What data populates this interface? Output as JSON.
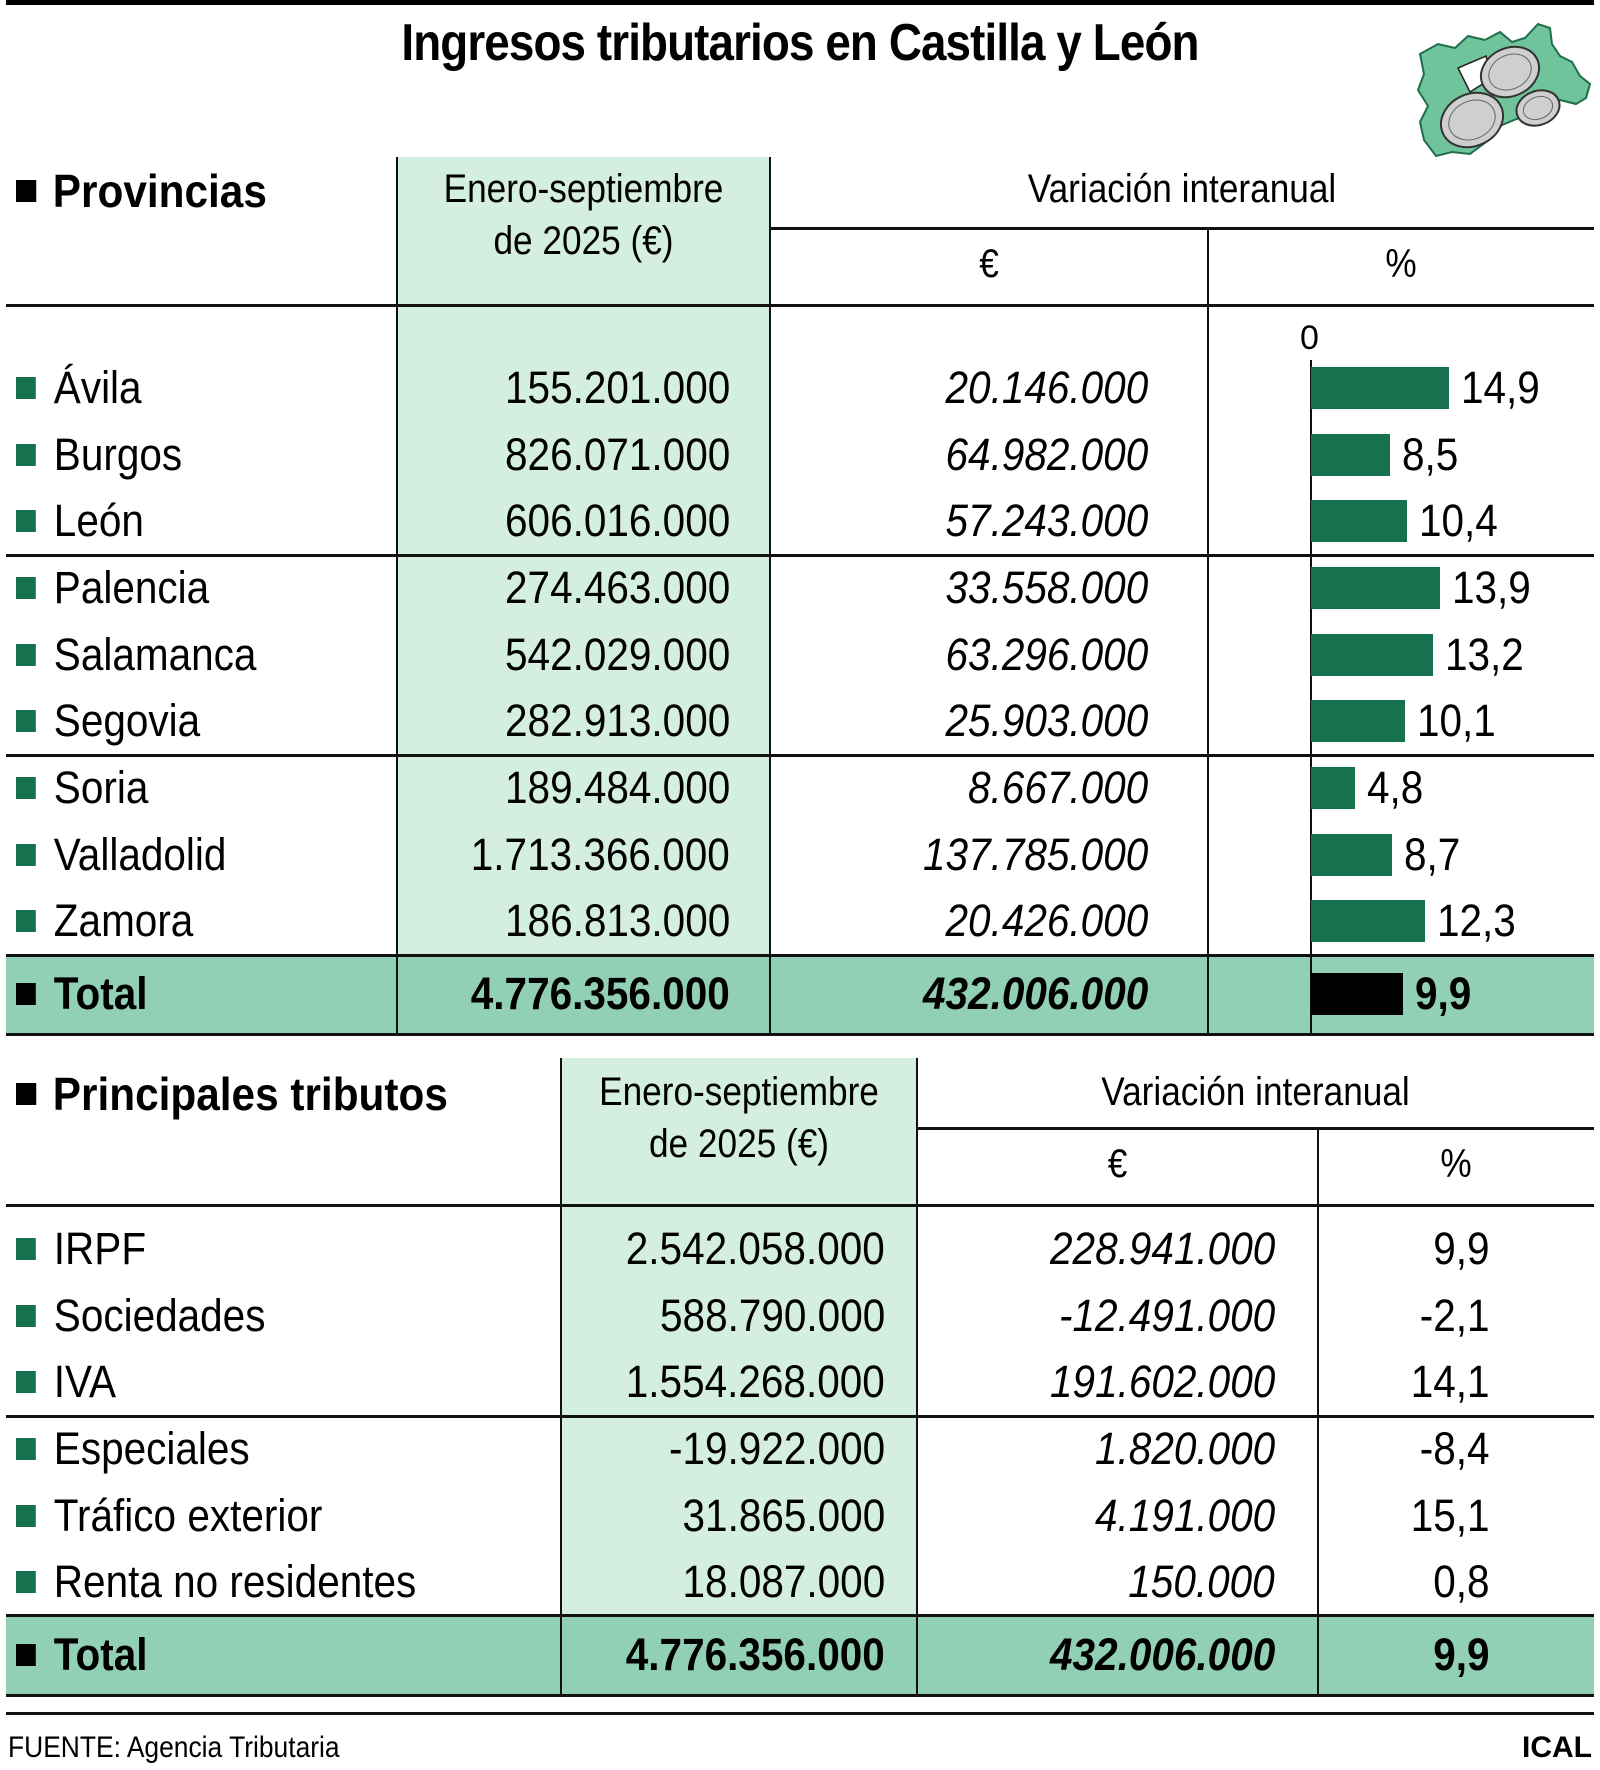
{
  "title": "Ingresos tributarios en Castilla y León",
  "logo": "castilla-leon-map-with-euro-coins",
  "colors": {
    "accent_green": "#17714f",
    "column_highlight": "#d4eee0",
    "total_band": "#92d0b6",
    "total_bar": "#000000"
  },
  "provincias": {
    "section_title": "Provincias",
    "col_period": [
      "Enero-septiembre",
      "de 2025 (€)"
    ],
    "col_variation": "Variación interanual",
    "col_eur": "€",
    "col_pct": "%",
    "axis_zero": "0",
    "rows": [
      {
        "name": "Ávila",
        "value": "155.201.000",
        "var_eur": "20.146.000",
        "var_pct": "14,9",
        "pct": 14.9
      },
      {
        "name": "Burgos",
        "value": "826.071.000",
        "var_eur": "64.982.000",
        "var_pct": "8,5",
        "pct": 8.5
      },
      {
        "name": "León",
        "value": "606.016.000",
        "var_eur": "57.243.000",
        "var_pct": "10,4",
        "pct": 10.4
      },
      {
        "name": "Palencia",
        "value": "274.463.000",
        "var_eur": "33.558.000",
        "var_pct": "13,9",
        "pct": 13.9
      },
      {
        "name": "Salamanca",
        "value": "542.029.000",
        "var_eur": "63.296.000",
        "var_pct": "13,2",
        "pct": 13.2
      },
      {
        "name": "Segovia",
        "value": "282.913.000",
        "var_eur": "25.903.000",
        "var_pct": "10,1",
        "pct": 10.1
      },
      {
        "name": "Soria",
        "value": "189.484.000",
        "var_eur": "8.667.000",
        "var_pct": "4,8",
        "pct": 4.8
      },
      {
        "name": "Valladolid",
        "value": "1.713.366.000",
        "var_eur": "137.785.000",
        "var_pct": "8,7",
        "pct": 8.7
      },
      {
        "name": "Zamora",
        "value": "186.813.000",
        "var_eur": "20.426.000",
        "var_pct": "12,3",
        "pct": 12.3
      }
    ],
    "total": {
      "name": "Total",
      "value": "4.776.356.000",
      "var_eur": "432.006.000",
      "var_pct": "9,9",
      "pct": 9.9
    }
  },
  "tributos": {
    "section_title": "Principales tributos",
    "col_period": [
      "Enero-septiembre",
      "de 2025 (€)"
    ],
    "col_variation": "Variación interanual",
    "col_eur": "€",
    "col_pct": "%",
    "rows": [
      {
        "name": "IRPF",
        "value": "2.542.058.000",
        "var_eur": "228.941.000",
        "var_pct": "9,9"
      },
      {
        "name": "Sociedades",
        "value": "588.790.000",
        "var_eur": "-12.491.000",
        "var_pct": "-2,1"
      },
      {
        "name": "IVA",
        "value": "1.554.268.000",
        "var_eur": "191.602.000",
        "var_pct": "14,1"
      },
      {
        "name": "Especiales",
        "value": "-19.922.000",
        "var_eur": "1.820.000",
        "var_pct": "-8,4"
      },
      {
        "name": "Tráfico exterior",
        "value": "31.865.000",
        "var_eur": "4.191.000",
        "var_pct": "15,1"
      },
      {
        "name": "Renta no residentes",
        "value": "18.087.000",
        "var_eur": "150.000",
        "var_pct": "0,8"
      }
    ],
    "total": {
      "name": "Total",
      "value": "4.776.356.000",
      "var_eur": "432.006.000",
      "var_pct": "9,9"
    }
  },
  "footer": {
    "source": "FUENTE: Agencia Tributaria",
    "brand": "ICAL"
  },
  "chart_data": {
    "type": "bar",
    "orientation": "horizontal",
    "title": "Ingresos tributarios en Castilla y León — Variación interanual (%) por provincia",
    "xlabel": "%",
    "ylabel": "",
    "categories": [
      "Ávila",
      "Burgos",
      "León",
      "Palencia",
      "Salamanca",
      "Segovia",
      "Soria",
      "Valladolid",
      "Zamora",
      "Total"
    ],
    "values": [
      14.9,
      8.5,
      10.4,
      13.9,
      13.2,
      10.1,
      4.8,
      8.7,
      12.3,
      9.9
    ],
    "axis_tick": "0",
    "xlim": [
      0,
      15
    ],
    "grid": false,
    "legend": "none",
    "tables": [
      {
        "name": "Provincias",
        "columns": [
          "Provincia",
          "Enero-septiembre de 2025 (€)",
          "Variación interanual €",
          "Variación interanual %"
        ],
        "rows": [
          [
            "Ávila",
            155201000,
            20146000,
            14.9
          ],
          [
            "Burgos",
            826071000,
            64982000,
            8.5
          ],
          [
            "León",
            606016000,
            57243000,
            10.4
          ],
          [
            "Palencia",
            274463000,
            33558000,
            13.9
          ],
          [
            "Salamanca",
            542029000,
            63296000,
            13.2
          ],
          [
            "Segovia",
            282913000,
            25903000,
            10.1
          ],
          [
            "Soria",
            189484000,
            8667000,
            4.8
          ],
          [
            "Valladolid",
            1713366000,
            137785000,
            8.7
          ],
          [
            "Zamora",
            186813000,
            20426000,
            12.3
          ],
          [
            "Total",
            4776356000,
            432006000,
            9.9
          ]
        ]
      },
      {
        "name": "Principales tributos",
        "columns": [
          "Tributo",
          "Enero-septiembre de 2025 (€)",
          "Variación interanual €",
          "Variación interanual %"
        ],
        "rows": [
          [
            "IRPF",
            2542058000,
            228941000,
            9.9
          ],
          [
            "Sociedades",
            588790000,
            -12491000,
            -2.1
          ],
          [
            "IVA",
            1554268000,
            191602000,
            14.1
          ],
          [
            "Especiales",
            -19922000,
            1820000,
            -8.4
          ],
          [
            "Tráfico exterior",
            31865000,
            4191000,
            15.1
          ],
          [
            "Renta no residentes",
            18087000,
            150000,
            0.8
          ],
          [
            "Total",
            4776356000,
            432006000,
            9.9
          ]
        ]
      }
    ]
  }
}
